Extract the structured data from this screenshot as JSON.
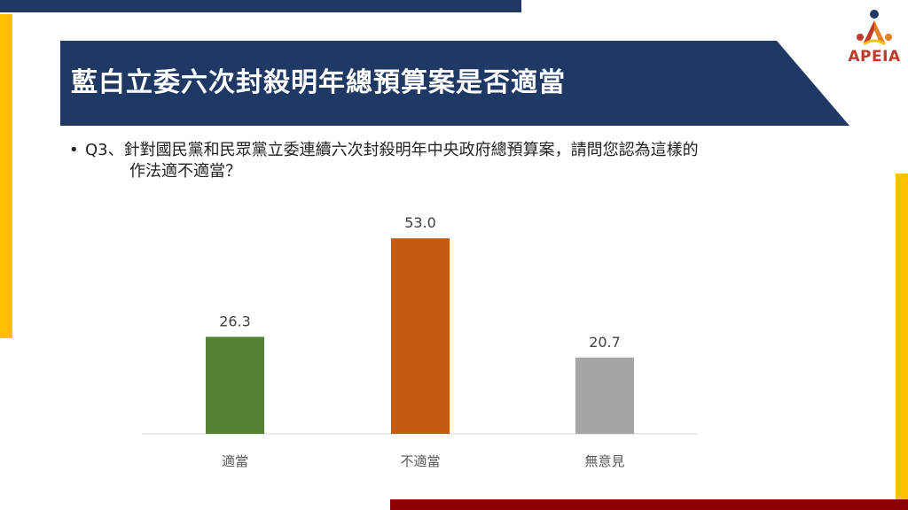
{
  "header": {
    "title": "藍白立委六次封殺明年總預算案是否適當",
    "logo_text": "APEIA"
  },
  "question": {
    "bullet": "•",
    "line1": "Q3、針對國民黨和民眾黨立委連續六次封殺明年中央政府總預算案，請問您認為這樣的",
    "line2": "作法適不適當？"
  },
  "colors": {
    "navy": "#1f3864",
    "gold": "#ffc000",
    "maroon": "#8b0000"
  },
  "chart_data": {
    "type": "bar",
    "categories": [
      "適當",
      "不適當",
      "無意見"
    ],
    "values": [
      26.3,
      53.0,
      20.7
    ],
    "value_labels": [
      "26.3",
      "53.0",
      "20.7"
    ],
    "colors": [
      "#548235",
      "#c55a11",
      "#a5a5a5"
    ],
    "ylim": [
      0,
      60
    ],
    "grid": false,
    "legend": "none"
  }
}
